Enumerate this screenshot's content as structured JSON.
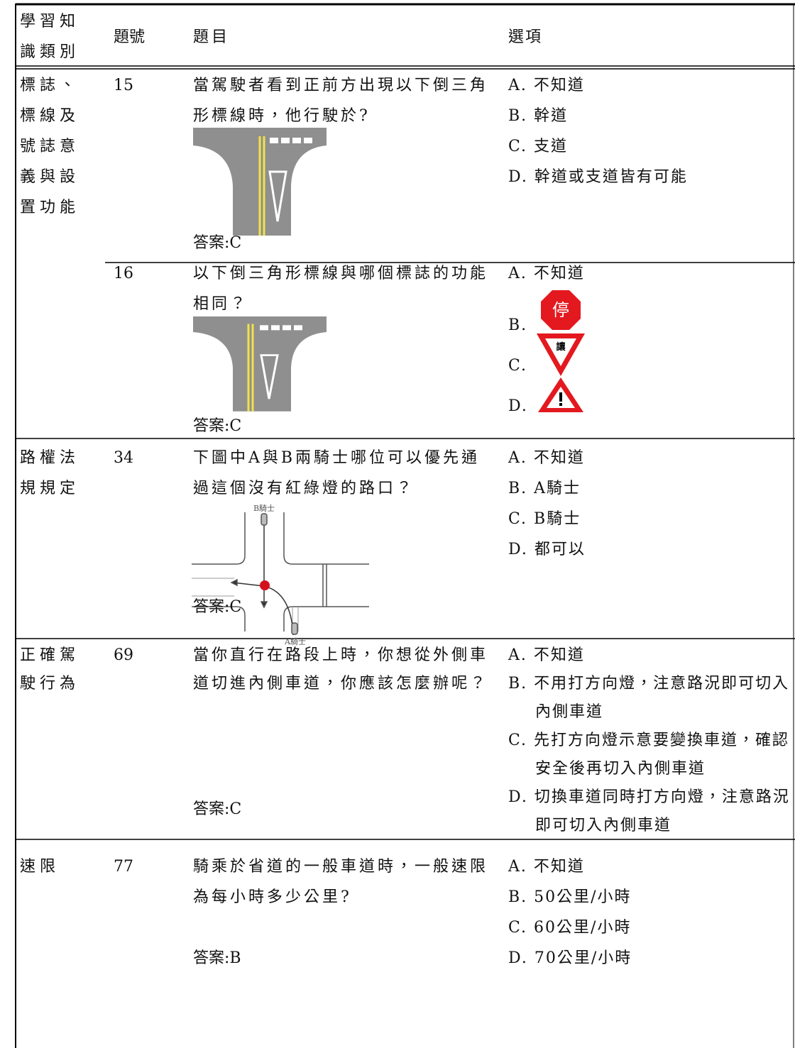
{
  "header": {
    "category": "學習知識類別",
    "number": "題號",
    "question": "題目",
    "options": "選項"
  },
  "groups": [
    {
      "category": "標誌、標線及號誌意義與設置功能",
      "questions": [
        {
          "number": "15",
          "question": "當駕駛者看到正前方出現以下倒三角形標線時，他行駛於?",
          "answer": "答案:C",
          "options": [
            "A. 不知道",
            "B. 幹道",
            "C. 支道",
            "D. 幹道或支道皆有可能"
          ]
        },
        {
          "number": "16",
          "question": "以下倒三角形標線與哪個標誌的功能相同？",
          "answer": "答案:C",
          "options": [
            "A. 不知道",
            "B.",
            "C.",
            "D."
          ],
          "signs": {
            "stop": "停",
            "yield": "讓"
          }
        }
      ]
    },
    {
      "category": "路權法規規定",
      "questions": [
        {
          "number": "34",
          "question": "下圖中A與B兩騎士哪位可以優先通過這個沒有紅綠燈的路口？",
          "answer": "答案:C",
          "options": [
            "A. 不知道",
            "B. A騎士",
            "C. B騎士",
            "D. 都可以"
          ],
          "diagram_labels": [
            "B騎士",
            "A騎士"
          ]
        }
      ]
    },
    {
      "category": "正確駕駛行為",
      "questions": [
        {
          "number": "69",
          "question": "當你直行在路段上時，你想從外側車道切進內側車道，你應該怎麼辦呢？",
          "answer": "答案:C",
          "options": [
            "A. 不知道",
            "B. 不用打方向燈，注意路況即可切入內側車道",
            "C. 先打方向燈示意要變換車道，確認安全後再切入內側車道",
            "D. 切換車道同時打方向燈，注意路況即可切入內側車道"
          ]
        }
      ]
    },
    {
      "category": "速限",
      "questions": [
        {
          "number": "77",
          "question": "騎乘於省道的一般車道時，一般速限為每小時多少公里?",
          "answer": "答案:B",
          "options": [
            "A. 不知道",
            "B. 50公里/小時",
            "C. 60公里/小時",
            "D. 70公里/小時"
          ]
        }
      ]
    }
  ]
}
